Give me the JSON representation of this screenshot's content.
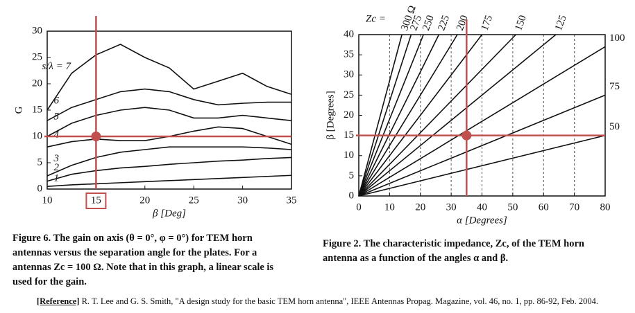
{
  "chart_data": [
    {
      "type": "line",
      "ylabel": "G",
      "xlabel": "β [Deg]",
      "x": [
        10,
        12.5,
        15,
        17.5,
        20,
        22.5,
        25,
        27.5,
        30,
        32.5,
        35
      ],
      "series": [
        {
          "name": "1",
          "color": "#111111",
          "values": [
            0.5,
            0.8,
            1,
            1.2,
            1.4,
            1.6,
            1.8,
            2,
            2.2,
            2.4,
            2.6
          ]
        },
        {
          "name": "2",
          "color": "#111111",
          "values": [
            1.5,
            2.8,
            3.5,
            4,
            4.3,
            4.7,
            5,
            5.3,
            5.5,
            5.8,
            6
          ]
        },
        {
          "name": "3",
          "color": "#111111",
          "values": [
            2.5,
            4.5,
            6,
            7,
            7.5,
            8,
            8,
            8,
            8,
            7.8,
            7.5
          ]
        },
        {
          "name": "4",
          "color": "#111111",
          "values": [
            8,
            9,
            9.5,
            9.2,
            9.2,
            10,
            11,
            11.8,
            11.5,
            10,
            8.5
          ]
        },
        {
          "name": "5",
          "color": "#111111",
          "values": [
            10,
            12.5,
            14,
            15,
            15.5,
            15,
            13.5,
            13.5,
            14,
            13.5,
            13
          ]
        },
        {
          "name": "6",
          "color": "#111111",
          "values": [
            13,
            15.5,
            17,
            18.5,
            19,
            18.5,
            17,
            16,
            16.3,
            16.5,
            16.5
          ]
        },
        {
          "name": "s/λ = 7",
          "color": "#111111",
          "values": [
            15,
            22,
            25.5,
            27.5,
            25,
            23,
            19,
            20.5,
            22,
            19.5,
            18
          ]
        }
      ],
      "xlim": [
        10,
        35
      ],
      "xticks": [
        10,
        15,
        20,
        25,
        30,
        35
      ],
      "ylim": [
        0,
        30
      ],
      "yticks": [
        0,
        5,
        10,
        15,
        20,
        25,
        30
      ],
      "grid": false,
      "marker": {
        "x": 15,
        "y": 10,
        "color": "#c0504d"
      }
    },
    {
      "type": "line",
      "ylabel": "β [Degrees]",
      "xlabel": "α [Degrees]",
      "series_label": "Zc =",
      "series": [
        {
          "name": "300 Ω",
          "color": "#111111",
          "x": [
            0,
            14
          ],
          "values": [
            0,
            40
          ]
        },
        {
          "name": "275",
          "color": "#111111",
          "x": [
            0,
            17
          ],
          "values": [
            0,
            40
          ]
        },
        {
          "name": "250",
          "color": "#111111",
          "x": [
            0,
            21
          ],
          "values": [
            0,
            40
          ]
        },
        {
          "name": "225",
          "color": "#111111",
          "x": [
            0,
            26
          ],
          "values": [
            0,
            40
          ]
        },
        {
          "name": "200",
          "color": "#111111",
          "x": [
            0,
            32
          ],
          "values": [
            0,
            40
          ]
        },
        {
          "name": "175",
          "color": "#111111",
          "x": [
            0,
            40
          ],
          "values": [
            0,
            40
          ]
        },
        {
          "name": "150",
          "color": "#111111",
          "x": [
            0,
            51
          ],
          "values": [
            0,
            40
          ]
        },
        {
          "name": "125",
          "color": "#111111",
          "x": [
            0,
            64
          ],
          "values": [
            0,
            40
          ]
        },
        {
          "name": "100",
          "color": "#111111",
          "x": [
            0,
            80
          ],
          "values": [
            0,
            37
          ]
        },
        {
          "name": "75",
          "color": "#111111",
          "x": [
            0,
            80
          ],
          "values": [
            0,
            25
          ]
        },
        {
          "name": "50",
          "color": "#111111",
          "x": [
            0,
            80
          ],
          "values": [
            0,
            15
          ]
        }
      ],
      "xlim": [
        0,
        80
      ],
      "xticks": [
        0,
        10,
        20,
        30,
        40,
        50,
        60,
        70,
        80
      ],
      "ylim": [
        0,
        40
      ],
      "yticks": [
        0,
        5,
        10,
        15,
        20,
        25,
        30,
        35,
        40
      ],
      "grid": true,
      "marker": {
        "x": 35,
        "y": 15,
        "color": "#c0504d"
      }
    }
  ],
  "captions": [
    {
      "lines": [
        "Figure 6. The gain on axis (θ = 0°, φ = 0°) for TEM horn",
        "antennas versus the separation angle for the plates. For a",
        "antennas Zc = 100 Ω. Note that in this graph, a linear scale is",
        "used for the gain."
      ]
    },
    {
      "lines": [
        "Figure 2. The characteristic impedance, Zc, of the TEM horn",
        "antenna as a function of the angles α and β."
      ]
    }
  ],
  "reference": {
    "label": "[Reference]",
    "text": "R. T. Lee and G. S. Smith, \"A design study for the basic TEM horn antenna\", IEEE Antennas Propag. Magazine, vol. 46, no. 1, pp. 86-92, Feb. 2004."
  }
}
